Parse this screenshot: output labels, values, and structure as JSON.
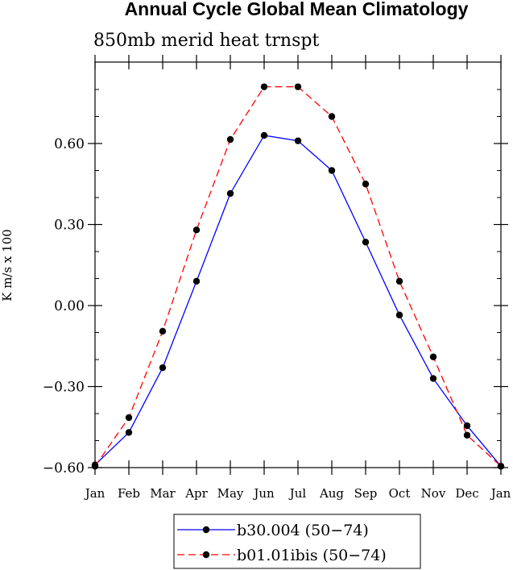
{
  "chart_data": {
    "type": "line",
    "title": "Annual Cycle Global Mean Climatology",
    "subtitle": "850mb merid heat trnspt",
    "xlabel": "",
    "ylabel": "K m/s x 100",
    "categories": [
      "Jan",
      "Feb",
      "Mar",
      "Apr",
      "May",
      "Jun",
      "Jul",
      "Aug",
      "Sep",
      "Oct",
      "Nov",
      "Dec",
      "Jan"
    ],
    "ylim": [
      -0.6,
      0.6
    ],
    "y_ticks": [
      -0.6,
      -0.3,
      0.0,
      0.3,
      0.6
    ],
    "y_tick_labels": [
      "−0.60",
      "−0.30",
      "0.00",
      "0.30",
      "0.60"
    ],
    "grid": false,
    "legend_position": "bottom",
    "series": [
      {
        "name": "b30.004 (50−74)",
        "color": "#0000ff",
        "line_style": "solid",
        "marker": "circle",
        "values": [
          -0.59,
          -0.47,
          -0.23,
          0.09,
          0.415,
          0.63,
          0.61,
          0.5,
          0.235,
          -0.035,
          -0.27,
          -0.445,
          -0.595
        ]
      },
      {
        "name": "b01.01ibis (50−74)",
        "color": "#ff0000",
        "line_style": "dashed",
        "marker": "circle",
        "values": [
          -0.595,
          -0.415,
          -0.095,
          0.28,
          0.615,
          0.81,
          0.81,
          0.7,
          0.45,
          0.09,
          -0.19,
          -0.48,
          -0.595
        ]
      }
    ]
  }
}
